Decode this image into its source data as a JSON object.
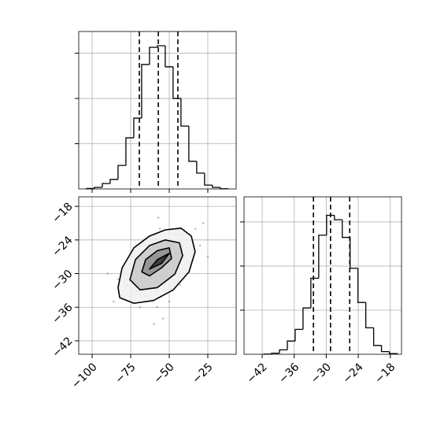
{
  "chart_data": [
    {
      "type": "histogram",
      "bins": [
        -103.6,
        -98.5,
        -93.4,
        -88.3,
        -83.2,
        -78.1,
        -73.0,
        -67.9,
        -62.8,
        -57.7,
        -52.6,
        -47.5,
        -42.4,
        -37.3,
        -32.2,
        -27.1,
        -22.0,
        -16.9,
        -11.8
      ],
      "values": [
        2,
        7,
        24,
        42,
        104,
        226,
        313,
        550,
        626,
        633,
        540,
        400,
        278,
        122,
        70,
        17,
        7,
        1
      ],
      "xlim": [
        -108.7,
        -6.6
      ],
      "ylim": [
        0,
        696
      ],
      "xticks": [
        -100,
        -75,
        -50,
        -25
      ],
      "yticks": [
        200,
        400,
        600
      ],
      "quantiles": [
        -69.4,
        -57.1,
        -44.4
      ],
      "tick_labels": false,
      "grid": true,
      "color": "#000000"
    },
    {
      "type": "scatter",
      "x": [
        -57,
        -45,
        -68,
        -52,
        -71,
        -39,
        -60,
        -49,
        -80,
        -33,
        -63,
        -55,
        -47,
        -74,
        -58,
        -42,
        -66,
        -51,
        -86,
        -28,
        -59,
        -44,
        -70,
        -53,
        -62,
        -37,
        -77,
        -48,
        -56,
        -65,
        -41,
        -73,
        -50,
        -61,
        -35,
        -83,
        -46,
        -67,
        -54,
        -30,
        -64,
        -57,
        -43,
        -72,
        -58,
        -90,
        -25,
        -69,
        -52,
        -60
      ],
      "y": [
        -29,
        -26,
        -31,
        -27,
        -33,
        -24,
        -30,
        -28,
        -34,
        -22,
        -32,
        -25,
        -27,
        -30,
        -36,
        -23,
        -28,
        -31,
        -35,
        -21,
        -24,
        -29,
        -27,
        -33,
        -26,
        -28,
        -32,
        -30,
        -22,
        -34,
        -25,
        -29,
        -35,
        -27,
        -26,
        -31,
        -23,
        -26,
        -38,
        -25,
        -30,
        -20,
        -32,
        -28,
        -33,
        -30,
        -27,
        -36,
        -24,
        -39
      ],
      "contours": [
        {
          "x": [
            -83.2,
            -80.6,
            -72.9,
            -62.8,
            -52.6,
            -42.3,
            -35.7,
            -33.2,
            -37.2,
            -47.4,
            -60.2,
            -72.9,
            -82.1
          ],
          "y": [
            -32.5,
            -29.0,
            -25.4,
            -23.3,
            -22.2,
            -21.9,
            -23.3,
            -26.1,
            -29.7,
            -32.9,
            -34.8,
            -35.3,
            -34.3
          ]
        },
        {
          "x": [
            -75.5,
            -71.9,
            -62.8,
            -52.6,
            -43.4,
            -41.3,
            -46.4,
            -57.7,
            -68.9
          ],
          "y": [
            -31.1,
            -27.5,
            -25.0,
            -24.0,
            -24.5,
            -26.8,
            -30.1,
            -32.5,
            -32.9
          ]
        },
        {
          "x": [
            -67.8,
            -65.3,
            -57.7,
            -50.0,
            -48.5,
            -55.1,
            -62.8
          ],
          "y": [
            -29.7,
            -27.5,
            -25.9,
            -25.4,
            -27.3,
            -29.0,
            -30.4
          ]
        },
        {
          "x": [
            -62.8,
            -57.7,
            -50.0,
            -55.1
          ],
          "y": [
            -29.2,
            -27.5,
            -26.4,
            -28.2
          ]
        }
      ],
      "xlim": [
        -108.7,
        -6.6
      ],
      "ylim": [
        -44.4,
        -16.3
      ],
      "xticks": [
        {
          "value": -100,
          "label": "−100"
        },
        {
          "value": -75,
          "label": "−75"
        },
        {
          "value": -50,
          "label": "−50"
        },
        {
          "value": -25,
          "label": "−25"
        }
      ],
      "yticks": [
        {
          "value": -18,
          "label": "−18"
        },
        {
          "value": -24,
          "label": "−24"
        },
        {
          "value": -30,
          "label": "−30"
        },
        {
          "value": -36,
          "label": "−36"
        },
        {
          "value": -42,
          "label": "−42"
        }
      ],
      "tick_labels": true,
      "grid": true,
      "color": "#808080"
    },
    {
      "type": "histogram",
      "bins": [
        -41.7,
        -40.23,
        -38.76,
        -37.29,
        -35.82,
        -34.35,
        -32.88,
        -31.41,
        -29.94,
        -28.47,
        -27.0,
        -25.53,
        -24.06,
        -22.59,
        -21.12,
        -19.65,
        -18.18,
        -16.71
      ],
      "values": [
        1,
        5,
        20,
        60,
        113,
        210,
        345,
        540,
        630,
        610,
        530,
        390,
        235,
        120,
        40,
        12,
        3
      ],
      "xlim": [
        -45.4,
        -15.9
      ],
      "ylim": [
        0,
        714
      ],
      "xticks": [
        {
          "value": -42,
          "label": "−42"
        },
        {
          "value": -36,
          "label": "−36"
        },
        {
          "value": -30,
          "label": "−30"
        },
        {
          "value": -24,
          "label": "−24"
        },
        {
          "value": -18,
          "label": "−18"
        }
      ],
      "yticks": [
        200,
        400,
        600
      ],
      "quantiles": [
        -32.4,
        -29.2,
        -25.6
      ],
      "tick_labels": true,
      "grid": true,
      "color": "#000000"
    }
  ]
}
